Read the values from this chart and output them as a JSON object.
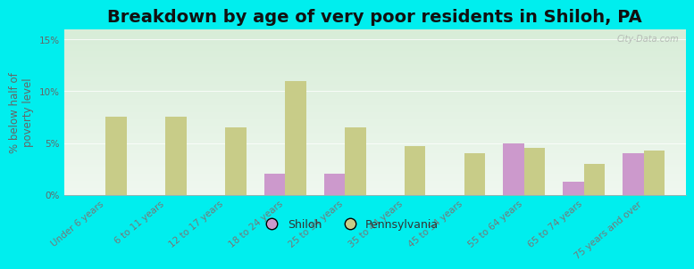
{
  "title": "Breakdown by age of very poor residents in Shiloh, PA",
  "ylabel": "% below half of\npoverty level",
  "categories": [
    "Under 6 years",
    "6 to 11 years",
    "12 to 17 years",
    "18 to 24 years",
    "25 to 34 years",
    "35 to 44 years",
    "45 to 54 years",
    "55 to 64 years",
    "65 to 74 years",
    "75 years and over"
  ],
  "shiloh_values": [
    0,
    0,
    0,
    2.0,
    2.0,
    0,
    0,
    5.0,
    1.3,
    4.0
  ],
  "pa_values": [
    7.5,
    7.5,
    6.5,
    11.0,
    6.5,
    4.7,
    4.0,
    4.5,
    3.0,
    4.3
  ],
  "shiloh_color": "#cc99cc",
  "pa_color": "#c8cc88",
  "background_color": "#00eeee",
  "gradient_colors": [
    "#d8edd8",
    "#f0f8f0"
  ],
  "ylim": [
    0,
    16
  ],
  "yticks": [
    0,
    5,
    10,
    15
  ],
  "ytick_labels": [
    "0%",
    "5%",
    "10%",
    "15%"
  ],
  "title_fontsize": 14,
  "label_fontsize": 7.5,
  "ylabel_fontsize": 8.5,
  "legend_labels": [
    "Shiloh",
    "Pennsylvania"
  ],
  "watermark": "City-Data.com"
}
